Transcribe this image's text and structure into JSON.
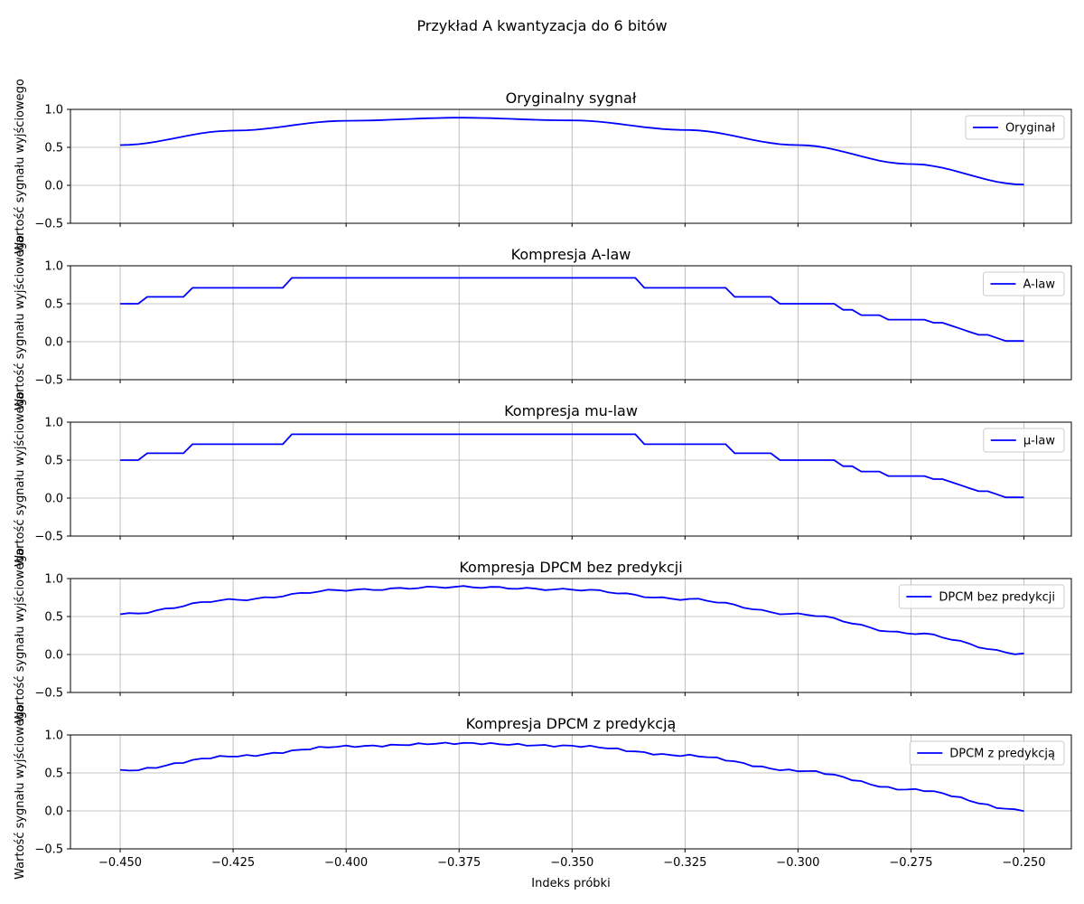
{
  "figure": {
    "suptitle": "Przykład A kwantyzacja do 6 bitów"
  },
  "chart_data": [
    {
      "type": "line",
      "title": "Oryginalny sygnał",
      "ylabel": "Wartość sygnału wyjściowego",
      "xlabel": "",
      "xlim": [
        -0.461,
        -0.2395
      ],
      "ylim": [
        -0.5,
        1.0
      ],
      "yticks": [
        -0.5,
        0.0,
        0.5,
        1.0
      ],
      "xticks": [
        -0.45,
        -0.425,
        -0.4,
        -0.375,
        -0.35,
        -0.325,
        -0.3,
        -0.275,
        -0.25
      ],
      "grid": true,
      "legend_position": "upper-right",
      "series": [
        {
          "name": "Oryginał",
          "color": "#0000ff",
          "kind": "smooth",
          "x": [],
          "y": []
        }
      ]
    },
    {
      "type": "line",
      "title": "Kompresja A-law",
      "ylabel": "Wartość sygnału wyjściowego",
      "xlabel": "",
      "xlim": [
        -0.461,
        -0.2395
      ],
      "ylim": [
        -0.5,
        1.0
      ],
      "yticks": [
        -0.5,
        0.0,
        0.5,
        1.0
      ],
      "xticks": [
        -0.45,
        -0.425,
        -0.4,
        -0.375,
        -0.35,
        -0.325,
        -0.3,
        -0.275,
        -0.25
      ],
      "grid": true,
      "legend_position": "upper-right",
      "series": [
        {
          "name": "A-law",
          "color": "#0000ff",
          "kind": "quant",
          "x": [],
          "y": []
        }
      ]
    },
    {
      "type": "line",
      "title": "Kompresja mu-law",
      "ylabel": "Wartość sygnału wyjściowego",
      "xlabel": "",
      "xlim": [
        -0.461,
        -0.2395
      ],
      "ylim": [
        -0.5,
        1.0
      ],
      "yticks": [
        -0.5,
        0.0,
        0.5,
        1.0
      ],
      "xticks": [
        -0.45,
        -0.425,
        -0.4,
        -0.375,
        -0.35,
        -0.325,
        -0.3,
        -0.275,
        -0.25
      ],
      "grid": true,
      "legend_position": "upper-right",
      "series": [
        {
          "name": "µ-law",
          "color": "#0000ff",
          "kind": "quant",
          "x": [],
          "y": []
        }
      ]
    },
    {
      "type": "line",
      "title": "Kompresja DPCM bez predykcji",
      "ylabel": "Wartość sygnału wyjściowego",
      "xlabel": "",
      "xlim": [
        -0.461,
        -0.2395
      ],
      "ylim": [
        -0.5,
        1.0
      ],
      "yticks": [
        -0.5,
        0.0,
        0.5,
        1.0
      ],
      "xticks": [
        -0.45,
        -0.425,
        -0.4,
        -0.375,
        -0.35,
        -0.325,
        -0.3,
        -0.275,
        -0.25
      ],
      "grid": true,
      "legend_position": "upper-right",
      "series": [
        {
          "name": "DPCM bez predykcji",
          "color": "#0000ff",
          "kind": "jitter",
          "x": [],
          "y": []
        }
      ]
    },
    {
      "type": "line",
      "title": "Kompresja DPCM z predykcją",
      "ylabel": "Wartość sygnału wyjściowego",
      "xlabel": "Indeks próbki",
      "xlim": [
        -0.461,
        -0.2395
      ],
      "ylim": [
        -0.5,
        1.0
      ],
      "yticks": [
        -0.5,
        0.0,
        0.5,
        1.0
      ],
      "xticks": [
        -0.45,
        -0.425,
        -0.4,
        -0.375,
        -0.35,
        -0.325,
        -0.3,
        -0.275,
        -0.25
      ],
      "grid": true,
      "legend_position": "upper-right",
      "series": [
        {
          "name": "DPCM z predykcją",
          "color": "#0000ff",
          "kind": "jitter",
          "x": [],
          "y": []
        }
      ]
    }
  ]
}
